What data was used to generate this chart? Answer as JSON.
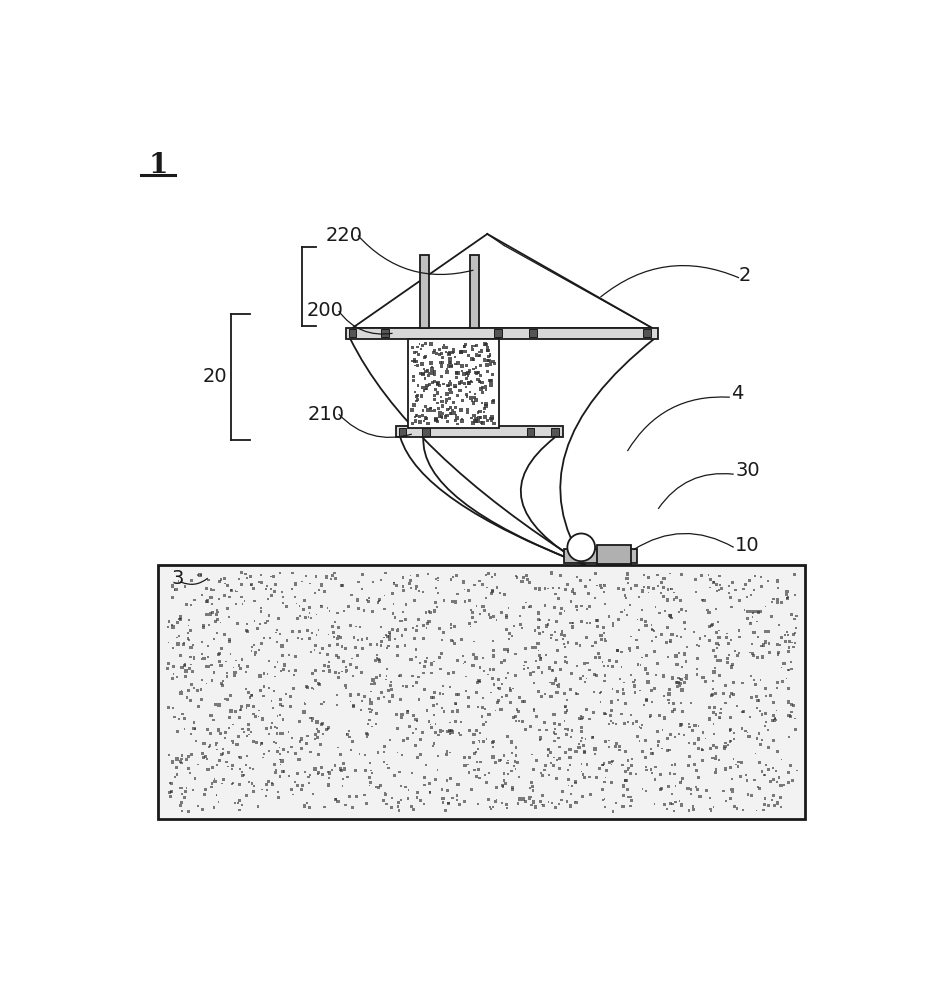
{
  "background_color": "#ffffff",
  "line_color": "#1a1a1a",
  "concrete_fill": "#f2f2f2",
  "concrete_dot": "#2a2a2a",
  "steel_fill": "#d8d8d8",
  "dark_fill": "#555555",
  "inner_fill": "#ffffff"
}
